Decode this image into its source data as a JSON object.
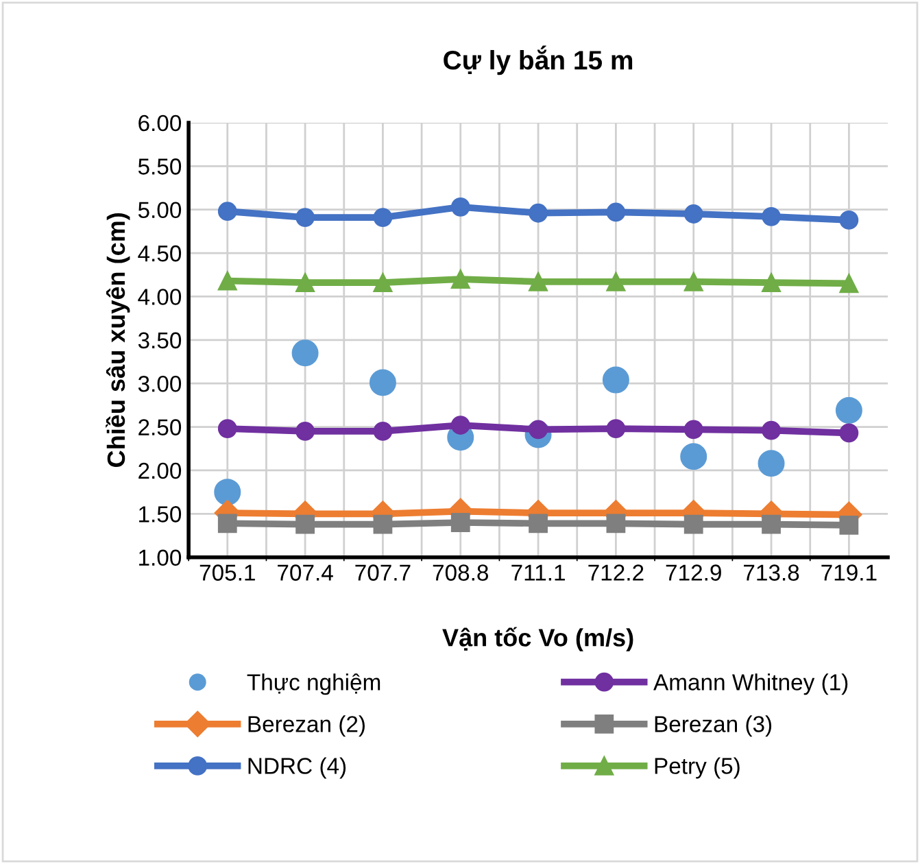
{
  "chart_data": {
    "type": "line",
    "title": "Cự ly bắn 15 m",
    "xlabel": "Vận tốc Vo (m/s)",
    "ylabel": "Chiều sâu xuyên (cm)",
    "categories": [
      "705.1",
      "707.4",
      "707.7",
      "708.8",
      "711.1",
      "712.2",
      "712.9",
      "713.8",
      "719.1"
    ],
    "series": [
      {
        "name": "Thực nghiệm",
        "type": "scatter",
        "color": "#5b9bd5",
        "marker": "circle",
        "values": [
          1.75,
          3.35,
          3.01,
          2.38,
          2.41,
          3.04,
          2.16,
          2.08,
          2.69
        ]
      },
      {
        "name": "Amann Whitney (1)",
        "color": "#7030a0",
        "marker": "circle",
        "values": [
          2.48,
          2.45,
          2.45,
          2.52,
          2.47,
          2.48,
          2.47,
          2.46,
          2.43
        ]
      },
      {
        "name": "Berezan (2)",
        "color": "#ed7d31",
        "marker": "diamond",
        "values": [
          1.51,
          1.5,
          1.5,
          1.53,
          1.51,
          1.51,
          1.51,
          1.5,
          1.49
        ]
      },
      {
        "name": "Berezan (3)",
        "color": "#7f7f7f",
        "marker": "square",
        "values": [
          1.39,
          1.38,
          1.38,
          1.4,
          1.39,
          1.39,
          1.38,
          1.38,
          1.37
        ]
      },
      {
        "name": "NDRC (4)",
        "color": "#4472c4",
        "marker": "circle",
        "values": [
          4.98,
          4.91,
          4.91,
          5.03,
          4.96,
          4.97,
          4.95,
          4.92,
          4.88
        ]
      },
      {
        "name": "Petry (5)",
        "color": "#70ad47",
        "marker": "triangle",
        "values": [
          4.18,
          4.16,
          4.16,
          4.2,
          4.17,
          4.17,
          4.17,
          4.16,
          4.15
        ]
      }
    ],
    "ylim": [
      1.0,
      6.0
    ],
    "yticks": [
      {
        "value": 1.0,
        "label": "1.00"
      },
      {
        "value": 1.5,
        "label": "1.50"
      },
      {
        "value": 2.0,
        "label": "2.00"
      },
      {
        "value": 2.5,
        "label": "2.50"
      },
      {
        "value": 3.0,
        "label": "3.00"
      },
      {
        "value": 3.5,
        "label": "3.50"
      },
      {
        "value": 4.0,
        "label": "4.00"
      },
      {
        "value": 4.5,
        "label": "4.50"
      },
      {
        "value": 5.0,
        "label": "5.00"
      },
      {
        "value": 5.5,
        "label": "5.50"
      },
      {
        "value": 6.0,
        "label": "6.00"
      }
    ],
    "grid": true,
    "legend": "bottom",
    "line_style": "solid"
  }
}
